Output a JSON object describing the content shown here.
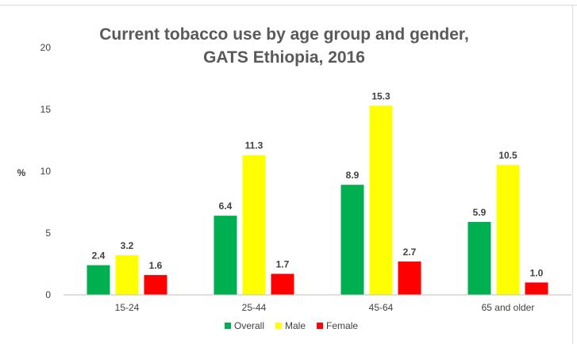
{
  "chart_data": {
    "type": "bar",
    "title_lines": [
      "Current tobacco use by age group and gender,",
      "GATS Ethiopia, 2016"
    ],
    "ylabel": "%",
    "ylim": [
      0,
      20
    ],
    "yticks": [
      "0",
      "5",
      "10",
      "15",
      "20"
    ],
    "grid": false,
    "legend_position": "bottom",
    "categories": [
      "15-24",
      "25-44",
      "45-64",
      "65 and older"
    ],
    "series": [
      {
        "name": "Overall",
        "color": "#00b050",
        "values": [
          2.4,
          6.4,
          8.9,
          5.9
        ],
        "labels": [
          "2.4",
          "6.4",
          "8.9",
          "5.9"
        ]
      },
      {
        "name": "Male",
        "color": "#ffff00",
        "values": [
          3.2,
          11.3,
          15.3,
          10.5
        ],
        "labels": [
          "3.2",
          "11.3",
          "15.3",
          "10.5"
        ]
      },
      {
        "name": "Female",
        "color": "#ff0000",
        "values": [
          1.6,
          1.7,
          2.7,
          1.0
        ],
        "labels": [
          "1.6",
          "1.7",
          "2.7",
          "1.0"
        ]
      }
    ]
  }
}
